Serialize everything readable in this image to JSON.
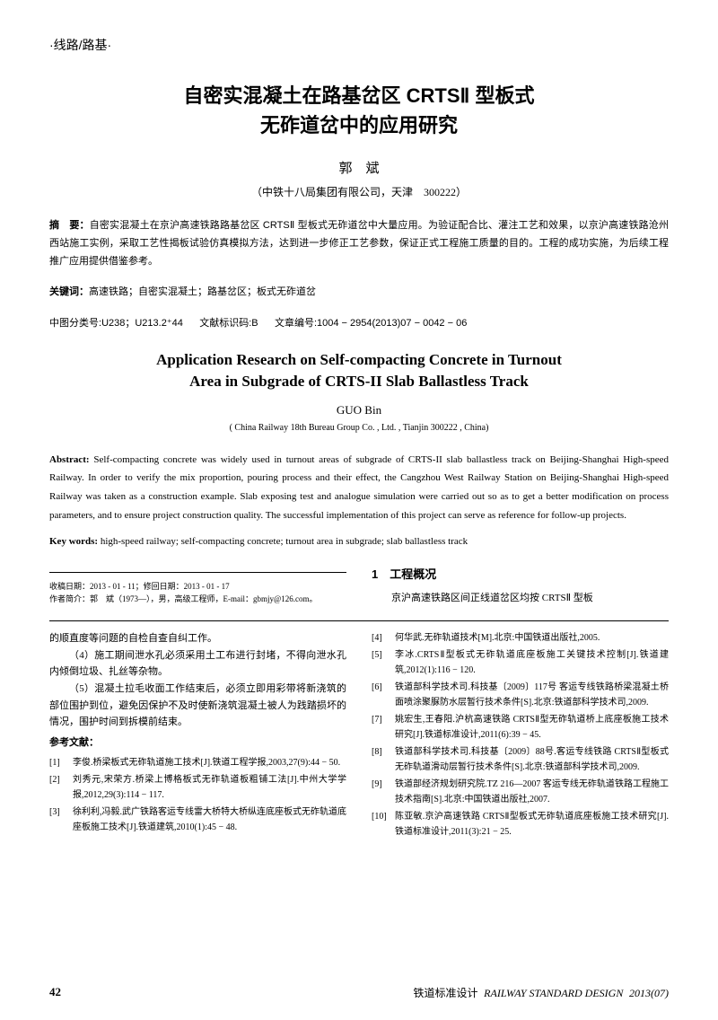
{
  "section_header": "·线路/路基·",
  "title_cn_l1": "自密实混凝土在路基岔区 CRTSⅡ 型板式",
  "title_cn_l2": "无砟道岔中的应用研究",
  "author_cn": "郭　斌",
  "affiliation_cn": "（中铁十八局集团有限公司，天津　300222）",
  "abstract_cn_label": "摘　要：",
  "abstract_cn": "自密实混凝土在京沪高速铁路路基岔区 CRTSⅡ 型板式无砟道岔中大量应用。为验证配合比、灌注工艺和效果，以京沪高速铁路沧州西站施工实例，采取工艺性揭板试验仿真模拟方法，达到进一步修正工艺参数，保证正式工程施工质量的目的。工程的成功实施，为后续工程推广应用提供借鉴参考。",
  "keywords_cn_label": "关键词：",
  "keywords_cn": "高速铁路；自密实混凝土；路基岔区；板式无砟道岔",
  "classif_label": "中图分类号:",
  "classif": "U238；U213.2⁺44",
  "doc_code_label": "文献标识码:",
  "doc_code": "B",
  "article_no_label": "文章编号:",
  "article_no": "1004 − 2954(2013)07 − 0042 − 06",
  "title_en_l1": "Application Research on Self-compacting Concrete in Turnout",
  "title_en_l2": "Area in Subgrade of CRTS-II Slab Ballastless Track",
  "author_en": "GUO Bin",
  "affiliation_en": "( China Railway 18th Bureau Group Co. , Ltd. , Tianjin 300222 , China)",
  "abstract_en_label": "Abstract:",
  "abstract_en": " Self-compacting concrete was widely used in turnout areas of subgrade of CRTS-II slab ballastless track on Beijing-Shanghai High-speed Railway. In order to verify the mix proportion, pouring process and their effect, the Cangzhou West Railway Station on Beijing-Shanghai High-speed Railway was taken as a construction example. Slab exposing test and analogue simulation were carried out so as to get a better modification on process parameters, and to ensure project construction quality. The successful implementation of this project can serve as reference for follow-up projects.",
  "keywords_en_label": "Key words:",
  "keywords_en": " high-speed railway; self-compacting concrete; turnout area in subgrade; slab ballastless track",
  "manuscript_receive": "收稿日期：2013 - 01 - 11；修回日期：2013 - 01 - 17",
  "manuscript_author": "作者简介：郭　斌（1973—），男，高级工程师，E-mail：gbmjy@126.com。",
  "section1_title": "1　工程概况",
  "section1_body": "京沪高速铁路区间正线道岔区均按 CRTSⅡ 型板",
  "leftcol_p1": "的顺直度等问题的自检自查自纠工作。",
  "leftcol_p2": "（4）施工期间泄水孔必须采用土工布进行封堵，不得向泄水孔内倾倒垃圾、扎丝等杂物。",
  "leftcol_p3": "（5）混凝土拉毛收面工作结束后，必须立即用彩带将新浇筑的部位围护到位，避免因保护不及时使新浇筑混凝土被人为践踏损坏的情况，围护时间到拆模前结束。",
  "refs_label": "参考文献：",
  "refs_left": [
    {
      "num": "[1]",
      "txt": "李俊.桥梁板式无砟轨道施工技术[J].铁道工程学报,2003,27(9):44 − 50."
    },
    {
      "num": "[2]",
      "txt": "刘秀元,宋荣方.桥梁上博格板式无砟轨道板粗铺工法[J].中州大学学报,2012,29(3):114 − 117."
    },
    {
      "num": "[3]",
      "txt": "徐利利,冯毅.武广铁路客运专线雷大桥特大桥纵连底座板式无砟轨道底座板施工技术[J].铁道建筑,2010(1):45 − 48."
    }
  ],
  "refs_right": [
    {
      "num": "[4]",
      "txt": "何华武.无砟轨道技术[M].北京:中国铁道出版社,2005."
    },
    {
      "num": "[5]",
      "txt": "李冰.CRTSⅡ型板式无砟轨道底座板施工关键技术控制[J].铁道建筑,2012(1):116 − 120."
    },
    {
      "num": "[6]",
      "txt": "铁道部科学技术司.科技基〔2009〕117号 客运专线铁路桥梁混凝土桥面喷涂聚脲防水层暂行技术条件[S].北京:铁道部科学技术司,2009."
    },
    {
      "num": "[7]",
      "txt": "姚宏生,王春阳.沪杭高速铁路 CRTSⅡ型无砟轨道桥上底座板施工技术研究[J].铁道标准设计,2011(6):39 − 45."
    },
    {
      "num": "[8]",
      "txt": "铁道部科学技术司.科技基〔2009〕88号.客运专线铁路 CRTSⅡ型板式无砟轨道滑动层暂行技术条件[S].北京:铁道部科学技术司,2009."
    },
    {
      "num": "[9]",
      "txt": "铁道部经济规划研究院.TZ 216—2007 客运专线无砟轨道铁路工程施工技术指南[S].北京:中国铁道出版社,2007."
    },
    {
      "num": "[10]",
      "txt": "陈亚敏.京沪高速铁路 CRTSⅡ型板式无砟轨道底座板施工技术研究[J].铁道标准设计,2011(3):21 − 25."
    }
  ],
  "page_num": "42",
  "journal_cn": "铁道标准设计",
  "journal_en": "RAILWAY STANDARD DESIGN",
  "issue": "2013(07)"
}
